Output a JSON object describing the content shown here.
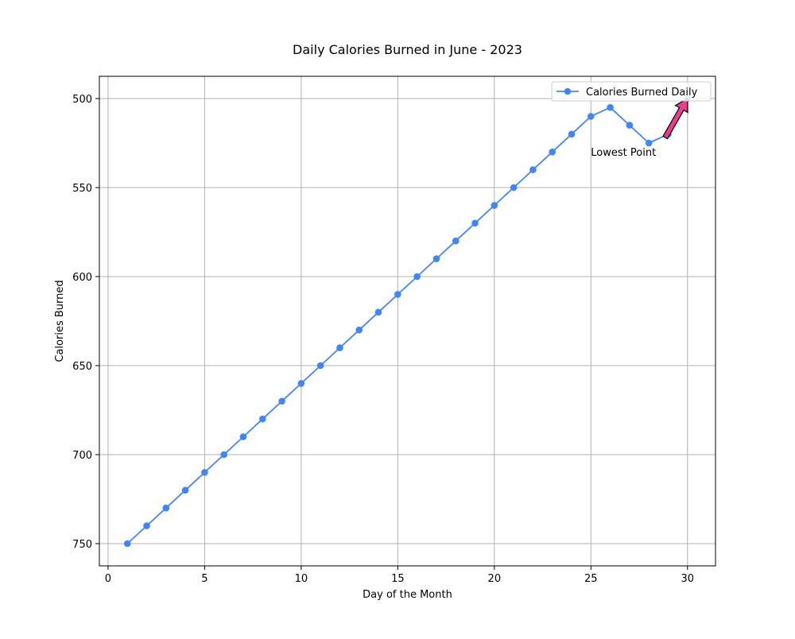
{
  "chart_data": {
    "type": "line",
    "title": "Daily Calories Burned in June - 2023",
    "xlabel": "Day of the Month",
    "ylabel": "Calories Burned",
    "xlim": [
      -0.45,
      31.45
    ],
    "ylim": [
      762.5,
      487.5
    ],
    "y_inverted": true,
    "grid": true,
    "legend_position": "top-right",
    "x_ticks": [
      0,
      5,
      10,
      15,
      20,
      25,
      30
    ],
    "y_ticks": [
      500,
      550,
      600,
      650,
      700,
      750
    ],
    "series": [
      {
        "name": "Calories Burned Daily",
        "color": "#4285f4",
        "marker": "circle",
        "x": [
          1,
          2,
          3,
          4,
          5,
          6,
          7,
          8,
          9,
          10,
          11,
          12,
          13,
          14,
          15,
          16,
          17,
          18,
          19,
          20,
          21,
          22,
          23,
          24,
          25,
          26,
          27,
          28,
          29,
          30
        ],
        "values": [
          750,
          740,
          730,
          720,
          710,
          700,
          690,
          680,
          670,
          660,
          650,
          640,
          630,
          620,
          610,
          600,
          590,
          580,
          570,
          560,
          550,
          540,
          530,
          520,
          510,
          505,
          515,
          525,
          520,
          500
        ]
      }
    ],
    "annotations": [
      {
        "text": "Lowest Point",
        "point": [
          30,
          500
        ],
        "text_position": [
          25,
          530
        ],
        "arrow_color": "#e83e8c",
        "arrow_edge_color": "#000000"
      }
    ]
  }
}
